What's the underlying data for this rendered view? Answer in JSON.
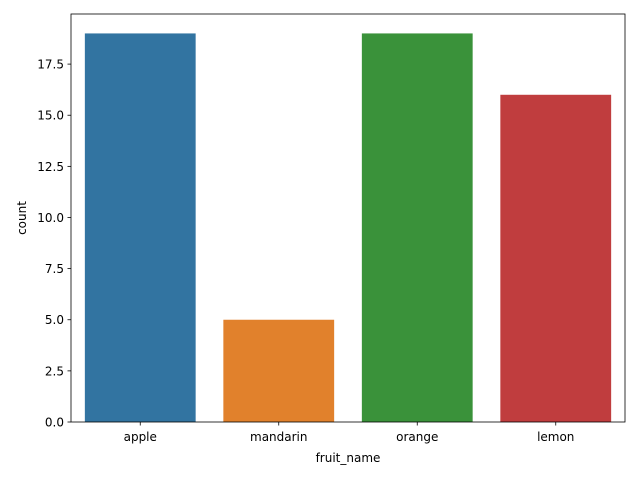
{
  "chart_data": {
    "type": "bar",
    "categories": [
      "apple",
      "mandarin",
      "orange",
      "lemon"
    ],
    "values": [
      19,
      5,
      19,
      16
    ],
    "colors": [
      "#3274a1",
      "#e1812c",
      "#3a923a",
      "#c03d3e"
    ],
    "title": "",
    "xlabel": "fruit_name",
    "ylabel": "count",
    "ylim": [
      0,
      19.95
    ],
    "yticks": [
      0,
      2.5,
      5,
      7.5,
      10,
      12.5,
      15,
      17.5
    ],
    "ytick_labels": [
      "0.0",
      "2.5",
      "5.0",
      "7.5",
      "10.0",
      "12.5",
      "15.0",
      "17.5"
    ],
    "grid": false,
    "legend": "none"
  }
}
